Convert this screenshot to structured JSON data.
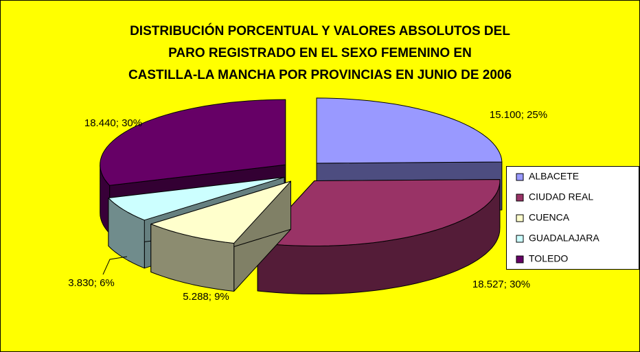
{
  "chart_data": {
    "type": "pie",
    "title": [
      "DISTRIBUCIÓN PORCENTUAL Y VALORES ABSOLUTOS DEL",
      "PARO REGISTRADO EN EL SEXO FEMENINO EN",
      "CASTILLA-LA MANCHA POR PROVINCIAS EN JUNIO DE 2006"
    ],
    "categories": [
      "ALBACETE",
      "CIUDAD REAL",
      "CUENCA",
      "GUADALAJARA",
      "TOLEDO"
    ],
    "values": [
      15100,
      18527,
      5288,
      3830,
      18440
    ],
    "value_labels": [
      "15.100; 25%",
      "18.527; 30%",
      "5.288; 9%",
      "3.830; 6%",
      "18.440; 30%"
    ],
    "colors": [
      "#9999ff",
      "#993366",
      "#ffffcc",
      "#ccffff",
      "#660066"
    ],
    "legend": "right"
  }
}
